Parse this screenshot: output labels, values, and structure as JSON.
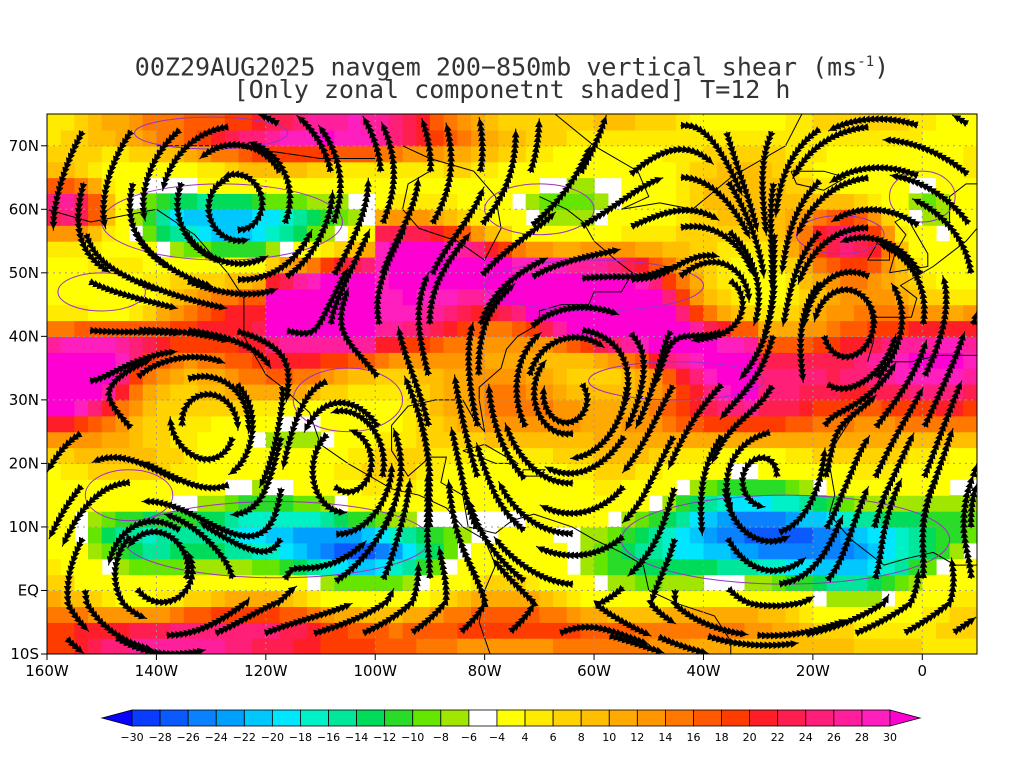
{
  "title": {
    "line1_prefix": "00Z29AUG2025 navgem 200−850mb vertical shear (ms",
    "line1_sup": "-1",
    "line1_suffix": ")",
    "line2": "[Only zonal componetnt shaded] T=12 h"
  },
  "map": {
    "lon_range": [
      -160,
      10
    ],
    "lat_range": [
      -10,
      75
    ],
    "lon_ticks": [
      {
        "value": -160,
        "label": "160W"
      },
      {
        "value": -140,
        "label": "140W"
      },
      {
        "value": -120,
        "label": "120W"
      },
      {
        "value": -100,
        "label": "100W"
      },
      {
        "value": -80,
        "label": "80W"
      },
      {
        "value": -60,
        "label": "60W"
      },
      {
        "value": -40,
        "label": "40W"
      },
      {
        "value": -20,
        "label": "20W"
      },
      {
        "value": 0,
        "label": "0"
      }
    ],
    "lat_ticks": [
      {
        "value": 70,
        "label": "70N"
      },
      {
        "value": 60,
        "label": "60N"
      },
      {
        "value": 50,
        "label": "50N"
      },
      {
        "value": 40,
        "label": "40N"
      },
      {
        "value": 30,
        "label": "30N"
      },
      {
        "value": 20,
        "label": "20N"
      },
      {
        "value": 10,
        "label": "10N"
      },
      {
        "value": 0,
        "label": "EQ"
      },
      {
        "value": -10,
        "label": "10S"
      }
    ]
  },
  "colorbar": {
    "levels": [
      -30,
      -28,
      -26,
      -24,
      -22,
      -20,
      -18,
      -16,
      -14,
      -12,
      -10,
      -8,
      -6,
      -4,
      4,
      6,
      8,
      10,
      12,
      14,
      16,
      18,
      20,
      22,
      24,
      26,
      28,
      30
    ],
    "labels": [
      "−30",
      "−28",
      "−26",
      "−24",
      "−22",
      "−20",
      "−18",
      "−16",
      "−14",
      "−12",
      "−10",
      "−8",
      "−6",
      "−4",
      "4",
      "6",
      "8",
      "10",
      "12",
      "14",
      "16",
      "18",
      "20",
      "22",
      "24",
      "26",
      "28",
      "30"
    ],
    "colors": [
      "#0a00ff",
      "#0a3cff",
      "#0a5aff",
      "#0a82ff",
      "#00a0ff",
      "#00c8ff",
      "#00e6ff",
      "#00f0c8",
      "#00e69b",
      "#00dc5a",
      "#28dc28",
      "#64e600",
      "#a0e600",
      "#ffffff",
      "#ffff00",
      "#ffeb00",
      "#ffd200",
      "#ffbe00",
      "#ffaa00",
      "#ff9600",
      "#ff7800",
      "#ff5a00",
      "#ff3c00",
      "#ff1e28",
      "#ff1e50",
      "#ff1e78",
      "#ff1e9b",
      "#ff1ebe",
      "#ff00d2"
    ]
  },
  "colors": {
    "background": "#ffffff",
    "streamline": "#000000",
    "contour": "#9b30c8",
    "coast": "#000000"
  }
}
